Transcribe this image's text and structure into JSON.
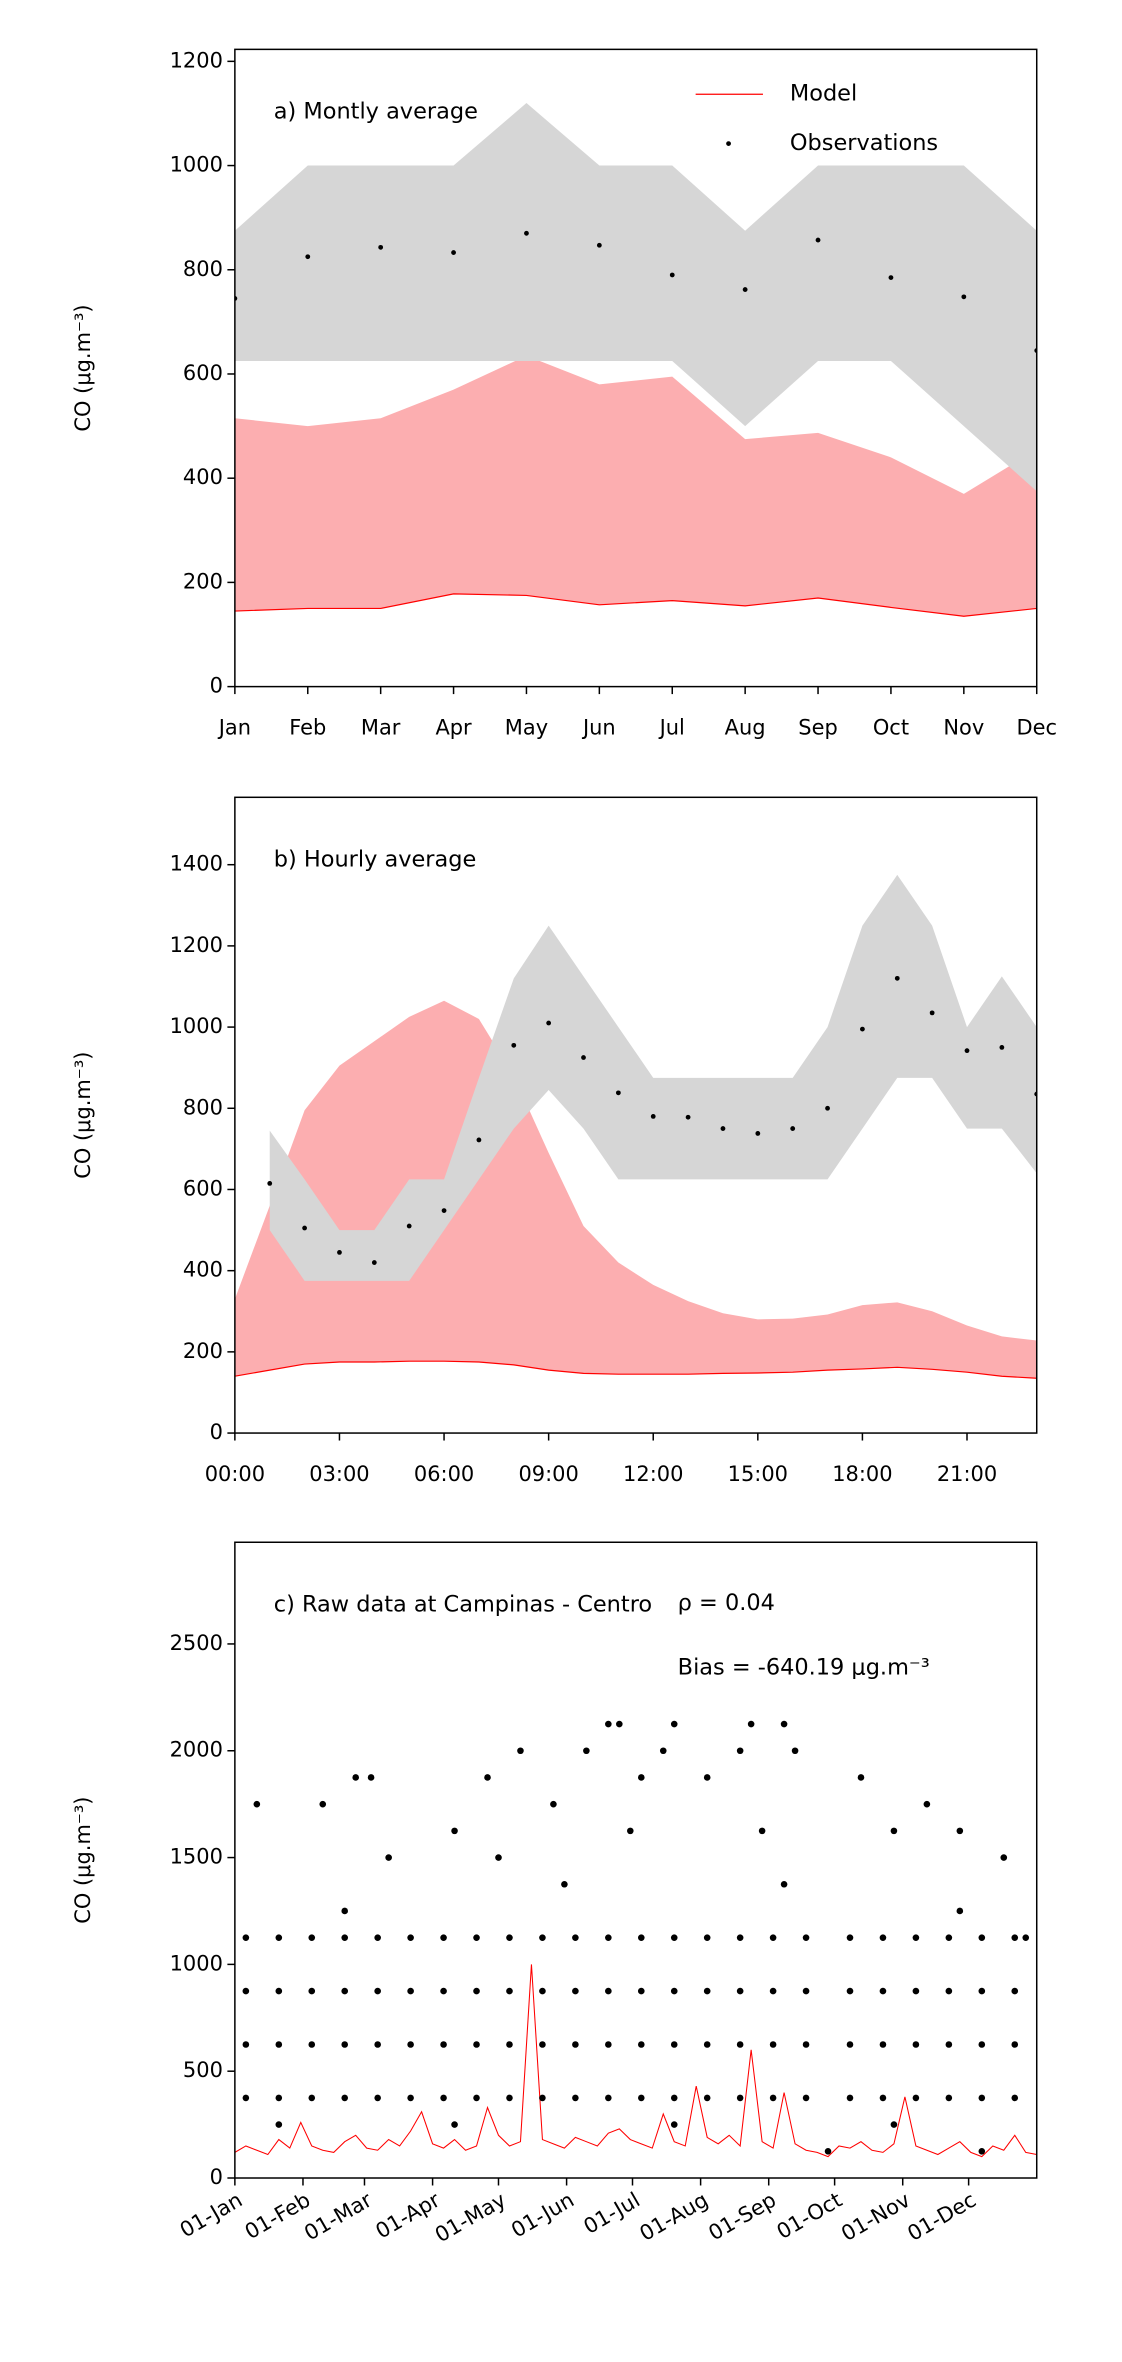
{
  "chart_data": [
    {
      "type": "line",
      "title": "a) Montly average",
      "ylabel": "CO (μg.m⁻³)",
      "categories": [
        "Jan",
        "Feb",
        "Mar",
        "Apr",
        "May",
        "Jun",
        "Jul",
        "Aug",
        "Sep",
        "Oct",
        "Nov",
        "Dec"
      ],
      "ylim": [
        0,
        1223
      ],
      "yticks": [
        0,
        200,
        400,
        600,
        800,
        1000,
        1200
      ],
      "legend": "upper right",
      "series": [
        {
          "name": "Model",
          "type": "line",
          "color": "#ff0000",
          "band_color": "#fcaeb0",
          "values": [
            145,
            150,
            150,
            178,
            175,
            157,
            165,
            155,
            170,
            152,
            135,
            150
          ],
          "band_upper": [
            515,
            500,
            515,
            570,
            635,
            580,
            595,
            475,
            487,
            440,
            370,
            455
          ]
        },
        {
          "name": "Observations",
          "type": "scatter",
          "color": "#000000",
          "band_color": "#d6d6d6",
          "values": [
            745,
            825,
            843,
            833,
            870,
            847,
            790,
            762,
            857,
            785,
            748,
            645
          ],
          "band_lower": [
            625,
            625,
            625,
            625,
            625,
            625,
            625,
            500,
            625,
            625,
            500,
            375
          ],
          "band_upper": [
            875,
            1000,
            1000,
            1000,
            1120,
            1000,
            1000,
            875,
            1000,
            1000,
            1000,
            875
          ]
        }
      ]
    },
    {
      "type": "line",
      "title": "b) Hourly average",
      "ylabel": "CO (μg.m⁻³)",
      "x": [
        0,
        1,
        2,
        3,
        4,
        5,
        6,
        7,
        8,
        9,
        10,
        11,
        12,
        13,
        14,
        15,
        16,
        17,
        18,
        19,
        20,
        21,
        22,
        23
      ],
      "xlim": [
        0,
        23
      ],
      "xticks": [
        {
          "value": 0,
          "label": "00:00"
        },
        {
          "value": 3,
          "label": "03:00"
        },
        {
          "value": 6,
          "label": "06:00"
        },
        {
          "value": 9,
          "label": "09:00"
        },
        {
          "value": 12,
          "label": "12:00"
        },
        {
          "value": 15,
          "label": "15:00"
        },
        {
          "value": 18,
          "label": "18:00"
        },
        {
          "value": 21,
          "label": "21:00"
        }
      ],
      "ylim": [
        0,
        1566
      ],
      "yticks": [
        0,
        200,
        400,
        600,
        800,
        1000,
        1200,
        1400
      ],
      "series": [
        {
          "type": "line",
          "color": "#ff0000",
          "band_color": "#fcaeb0",
          "values": [
            140,
            155,
            170,
            175,
            175,
            177,
            177,
            175,
            168,
            155,
            147,
            145,
            145,
            145,
            147,
            148,
            150,
            155,
            158,
            162,
            157,
            150,
            140,
            135
          ],
          "band_upper": [
            330,
            560,
            795,
            905,
            965,
            1025,
            1065,
            1020,
            880,
            690,
            510,
            420,
            365,
            325,
            295,
            280,
            282,
            292,
            315,
            322,
            300,
            265,
            238,
            228
          ]
        },
        {
          "type": "scatter",
          "color": "#000000",
          "band_color": "#d6d6d6",
          "values": [
            null,
            615,
            505,
            445,
            420,
            510,
            548,
            722,
            955,
            1010,
            925,
            838,
            780,
            778,
            750,
            738,
            750,
            800,
            995,
            1120,
            1035,
            942,
            950,
            835
          ],
          "band_lower": [
            null,
            500,
            375,
            375,
            375,
            375,
            500,
            625,
            750,
            845,
            750,
            625,
            625,
            625,
            625,
            625,
            625,
            625,
            750,
            875,
            875,
            750,
            750,
            640
          ],
          "band_upper": [
            null,
            745,
            625,
            500,
            500,
            625,
            625,
            875,
            1120,
            1250,
            1125,
            1000,
            875,
            875,
            875,
            875,
            875,
            1000,
            1250,
            1375,
            1250,
            1000,
            1125,
            1000
          ]
        }
      ]
    },
    {
      "type": "line",
      "title": "c) Raw data at Campinas - Centro",
      "ylabel": "CO (μg.m⁻³)",
      "annotations": [
        "ρ = 0.04",
        "Bias = -640.19 μg.m⁻³"
      ],
      "xlim": [
        0,
        365
      ],
      "xticks": [
        {
          "value": 0,
          "label": "01-Jan"
        },
        {
          "value": 31,
          "label": "01-Feb"
        },
        {
          "value": 59,
          "label": "01-Mar"
        },
        {
          "value": 90,
          "label": "01-Apr"
        },
        {
          "value": 120,
          "label": "01-May"
        },
        {
          "value": 151,
          "label": "01-Jun"
        },
        {
          "value": 181,
          "label": "01-Jul"
        },
        {
          "value": 212,
          "label": "01-Aug"
        },
        {
          "value": 243,
          "label": "01-Sep"
        },
        {
          "value": 273,
          "label": "01-Oct"
        },
        {
          "value": 304,
          "label": "01-Nov"
        },
        {
          "value": 334,
          "label": "01-Dec"
        }
      ],
      "ylim": [
        0,
        2976
      ],
      "yticks": [
        0,
        500,
        1000,
        1500,
        2000,
        2500
      ],
      "series": [
        {
          "type": "line",
          "color": "#ff0000",
          "x": [
            0,
            5,
            10,
            15,
            20,
            25,
            30,
            35,
            40,
            45,
            50,
            55,
            60,
            65,
            70,
            75,
            80,
            85,
            90,
            95,
            100,
            105,
            110,
            115,
            120,
            125,
            130,
            135,
            140,
            145,
            150,
            155,
            160,
            165,
            170,
            175,
            180,
            185,
            190,
            195,
            200,
            205,
            210,
            215,
            220,
            225,
            230,
            235,
            240,
            245,
            250,
            255,
            260,
            265,
            270,
            275,
            280,
            285,
            290,
            295,
            300,
            305,
            310,
            315,
            320,
            325,
            330,
            335,
            340,
            345,
            350,
            355,
            360,
            365
          ],
          "values": [
            120,
            150,
            130,
            110,
            180,
            140,
            260,
            150,
            130,
            120,
            170,
            200,
            140,
            130,
            180,
            150,
            220,
            310,
            160,
            140,
            180,
            130,
            150,
            330,
            200,
            150,
            170,
            1000,
            180,
            160,
            140,
            190,
            170,
            150,
            210,
            230,
            180,
            160,
            140,
            300,
            170,
            150,
            430,
            190,
            160,
            200,
            150,
            600,
            170,
            140,
            400,
            160,
            130,
            120,
            100,
            150,
            140,
            170,
            130,
            120,
            160,
            380,
            150,
            130,
            110,
            140,
            170,
            120,
            100,
            150,
            130,
            200,
            120,
            110
          ]
        },
        {
          "type": "scatter",
          "color": "#000000",
          "x": [
            5,
            20,
            35,
            50,
            65,
            80,
            95,
            110,
            125,
            140,
            155,
            170,
            185,
            200,
            215,
            230,
            245,
            260,
            280,
            295,
            310,
            325,
            340,
            355,
            5,
            20,
            35,
            50,
            65,
            80,
            95,
            110,
            125,
            140,
            155,
            170,
            185,
            200,
            215,
            230,
            245,
            260,
            280,
            295,
            310,
            325,
            340,
            355,
            5,
            20,
            35,
            50,
            65,
            80,
            95,
            110,
            125,
            140,
            155,
            170,
            185,
            200,
            215,
            230,
            245,
            260,
            280,
            295,
            310,
            325,
            340,
            355,
            5,
            20,
            35,
            50,
            65,
            80,
            95,
            110,
            125,
            140,
            155,
            170,
            185,
            200,
            215,
            230,
            245,
            260,
            280,
            295,
            310,
            325,
            340,
            355,
            10,
            40,
            55,
            62,
            70,
            100,
            115,
            130,
            145,
            160,
            170,
            175,
            185,
            195,
            200,
            215,
            230,
            235,
            250,
            255,
            285,
            300,
            315,
            330,
            350,
            360,
            20,
            100,
            200,
            300,
            150,
            250,
            50,
            120,
            180,
            240,
            330,
            270,
            340
          ],
          "values": [
            375,
            375,
            375,
            375,
            375,
            375,
            375,
            375,
            375,
            375,
            375,
            375,
            375,
            375,
            375,
            375,
            375,
            375,
            375,
            375,
            375,
            375,
            375,
            375,
            625,
            625,
            625,
            625,
            625,
            625,
            625,
            625,
            625,
            625,
            625,
            625,
            625,
            625,
            625,
            625,
            625,
            625,
            625,
            625,
            625,
            625,
            625,
            625,
            875,
            875,
            875,
            875,
            875,
            875,
            875,
            875,
            875,
            875,
            875,
            875,
            875,
            875,
            875,
            875,
            875,
            875,
            875,
            875,
            875,
            875,
            875,
            875,
            1125,
            1125,
            1125,
            1125,
            1125,
            1125,
            1125,
            1125,
            1125,
            1125,
            1125,
            1125,
            1125,
            1125,
            1125,
            1125,
            1125,
            1125,
            1125,
            1125,
            1125,
            1125,
            1125,
            1125,
            1750,
            1750,
            1875,
            1875,
            1500,
            1625,
            1875,
            2000,
            1750,
            2000,
            2125,
            2125,
            1875,
            2000,
            2125,
            1875,
            2000,
            2125,
            2125,
            2000,
            1875,
            1625,
            1750,
            1625,
            1500,
            1125,
            250,
            250,
            250,
            250,
            1375,
            1375,
            1250,
            1500,
            1625,
            1625,
            1250,
            125,
            125
          ]
        }
      ]
    }
  ]
}
